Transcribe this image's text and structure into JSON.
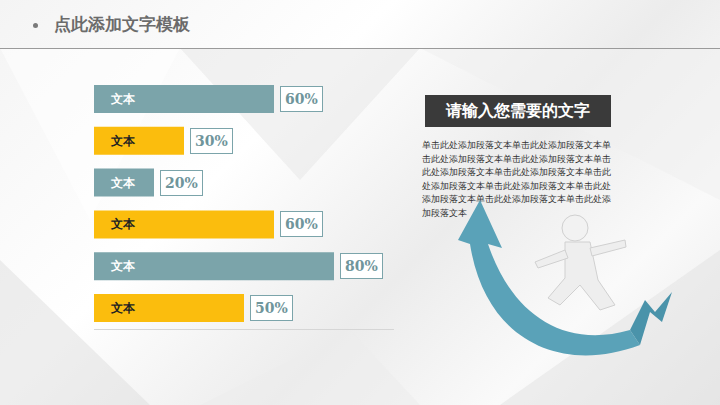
{
  "chart_data": {
    "type": "bar",
    "title": "点此添加文字模板",
    "orientation": "horizontal",
    "categories": [
      "文本",
      "文本",
      "文本",
      "文本",
      "文本",
      "文本"
    ],
    "values": [
      60,
      30,
      20,
      60,
      80,
      50
    ],
    "value_labels": [
      "60%",
      "30%",
      "20%",
      "60%",
      "80%",
      "50%"
    ],
    "colors": [
      "#7ba4aa",
      "#fbbd0d",
      "#7ba4aa",
      "#fbbd0d",
      "#7ba4aa",
      "#fbbd0d"
    ],
    "xlim": [
      0,
      100
    ],
    "xticks": [],
    "data_labels": true,
    "tick_labels": false,
    "grid": false,
    "annotations": [
      "请输入您需要的文字",
      "单击此处添加段落文本单击此处添加段落文本单击此处添加段落文本单击此处添加段落文本单击此处添加段落文本单击此处添加段落文本单击此处添加段落文本单击此处添加段落文本单击此处添加段落文本单击此处添加段落文本单击此处添加段落文本"
    ]
  }
}
